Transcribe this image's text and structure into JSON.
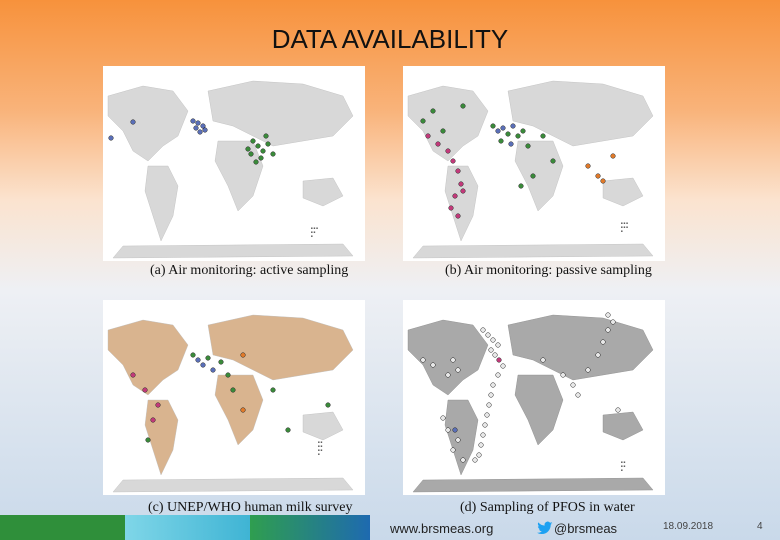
{
  "slide": {
    "title": "DATA AVAILABILITY",
    "panels": [
      {
        "caption": "(a)  Air monitoring: active sampling"
      },
      {
        "caption": "(b)  Air monitoring: passive sampling"
      },
      {
        "caption": "(c)  UNEP/WHO human milk survey"
      },
      {
        "caption": "(d)  Sampling of PFOS in water"
      }
    ]
  },
  "footer": {
    "website": "www.brsmeas.org",
    "twitter": "@brsmeas",
    "date": "18.09.2018",
    "page": "4"
  },
  "colors": {
    "land": "#d8d8d8",
    "land_colored": "#d9b48f",
    "green": "#3a8a3a",
    "blue": "#5a6fb8",
    "magenta": "#c2397a",
    "orange": "#e07a2a",
    "gray_dot": "#e8e8e8"
  },
  "icons": [
    "twitter-bird-icon"
  ]
}
